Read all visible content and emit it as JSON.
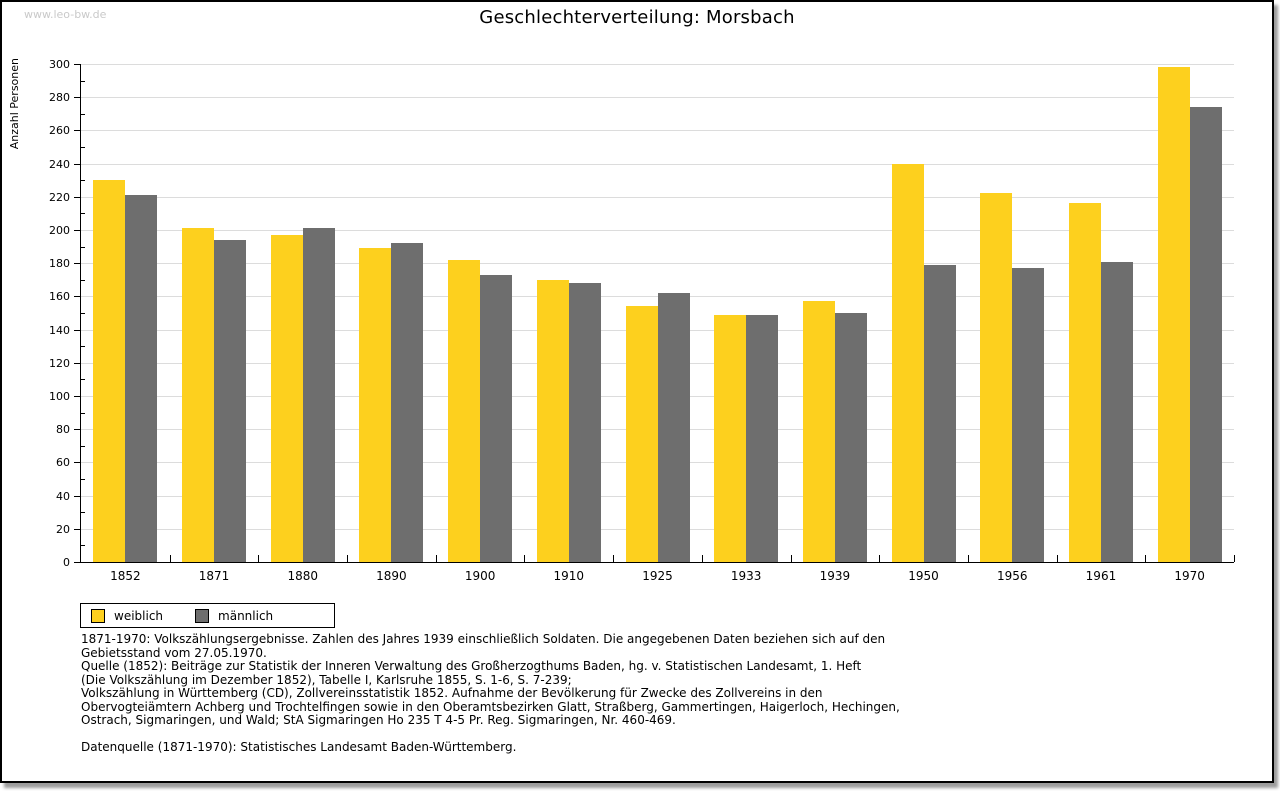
{
  "watermark": "www.leo-bw.de",
  "title": "Geschlechterverteilung: Morsbach",
  "chart_data": {
    "type": "bar",
    "title": "Geschlechterverteilung: Morsbach",
    "xlabel": "",
    "ylabel": "Anzahl Personen",
    "ylim": [
      0,
      300
    ],
    "ytick_step": 20,
    "yminor_step": 10,
    "grid": true,
    "legend_position": "bottom-left",
    "categories": [
      "1852",
      "1871",
      "1880",
      "1890",
      "1900",
      "1910",
      "1925",
      "1933",
      "1939",
      "1950",
      "1956",
      "1961",
      "1970"
    ],
    "series": [
      {
        "name": "weiblich",
        "color": "#fdd01e",
        "values": [
          230,
          201,
          197,
          189,
          182,
          170,
          154,
          149,
          157,
          240,
          222,
          216,
          298
        ]
      },
      {
        "name": "männlich",
        "color": "#6e6e6e",
        "values": [
          221,
          194,
          201,
          192,
          173,
          168,
          162,
          149,
          150,
          179,
          177,
          181,
          274
        ]
      }
    ],
    "colors": {
      "gridline": "#dcdcdc",
      "axis": "#000000",
      "weiblich": "#fdd01e",
      "maennlich": "#6e6e6e"
    }
  },
  "footnotes": [
    "1871-1970: Volkszählungsergebnisse. Zahlen des Jahres 1939 einschließlich Soldaten. Die angegebenen Daten beziehen sich auf den",
    "Gebietsstand vom 27.05.1970.",
    "Quelle (1852): Beiträge zur Statistik der Inneren Verwaltung des Großherzogthums Baden, hg. v. Statistischen Landesamt, 1. Heft",
    "(Die Volkszählung im Dezember 1852), Tabelle I, Karlsruhe 1855, S. 1-6, S. 7-239;",
    "Volkszählung in Württemberg (CD), Zollvereinsstatistik 1852. Aufnahme der Bevölkerung für Zwecke des Zollvereins in den",
    "Obervogteiämtern Achberg und Trochtelfingen sowie in den Oberamtsbezirken Glatt, Straßberg, Gammertingen, Haigerloch, Hechingen,",
    "Ostrach, Sigmaringen, und Wald; StA Sigmaringen Ho 235 T 4-5 Pr. Reg. Sigmaringen, Nr. 460-469.",
    "",
    "Datenquelle (1871-1970): Statistisches Landesamt Baden-Württemberg."
  ]
}
